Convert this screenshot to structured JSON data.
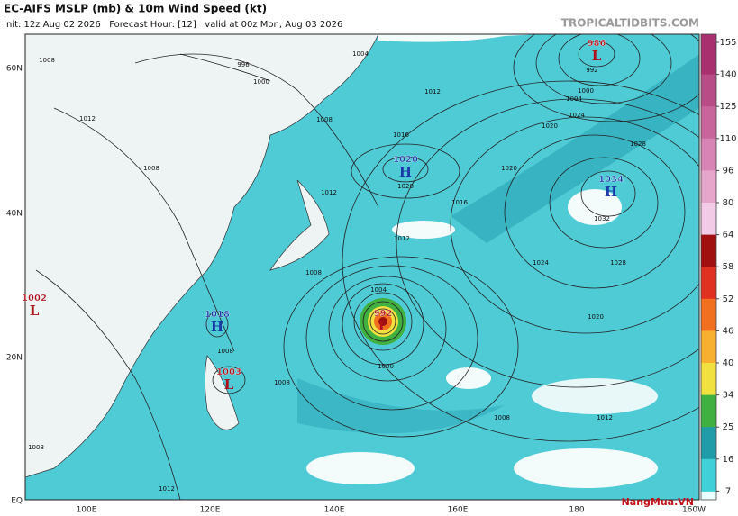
{
  "header": {
    "title": "EC-AIFS MSLP (mb) & 10m Wind Speed (kt)",
    "subtitle": "Init: 12z Aug 02 2026   Forecast Hour: [12]   valid at 00z Mon, Aug 03 2026",
    "site": "TROPICALTIDBITS.COM"
  },
  "axes": {
    "lat_labels": [
      "60N",
      "40N",
      "20N",
      "EQ"
    ],
    "lon_labels": [
      "100E",
      "120E",
      "140E",
      "160E",
      "180",
      "160W"
    ]
  },
  "colorbar": {
    "ticks": [
      155,
      140,
      125,
      110,
      96,
      80,
      64,
      58,
      52,
      46,
      40,
      34,
      25,
      16,
      7
    ],
    "colors": [
      "#a8306e",
      "#b84c86",
      "#c8669c",
      "#d884b4",
      "#e6a6cc",
      "#f2cce6",
      "#a01010",
      "#e03020",
      "#f07020",
      "#f8b030",
      "#f0e040",
      "#40b040",
      "#209ca8",
      "#40d0d8"
    ]
  },
  "centers": [
    {
      "letter": "L",
      "pressure": "986"
    },
    {
      "letter": "H",
      "pressure": "1020"
    },
    {
      "letter": "H",
      "pressure": "1034"
    },
    {
      "letter": "L",
      "pressure": "1002"
    },
    {
      "letter": "H",
      "pressure": "1018"
    },
    {
      "letter": "L",
      "pressure": "1003"
    },
    {
      "letter": "L",
      "pressure": "992"
    }
  ],
  "isobar_labels": [
    "1008",
    "996",
    "1000",
    "1004",
    "1012",
    "1008",
    "1012",
    "1016",
    "1020",
    "1016",
    "1012",
    "1008",
    "1004",
    "1000",
    "1008",
    "1008",
    "1020",
    "1024",
    "1028",
    "1032",
    "1028",
    "1024",
    "1020",
    "1012",
    "1008",
    "1008",
    "1012",
    "1004",
    "1000",
    "992",
    "1020",
    "1008",
    "1012"
  ],
  "watermark": "NangMua.VN"
}
